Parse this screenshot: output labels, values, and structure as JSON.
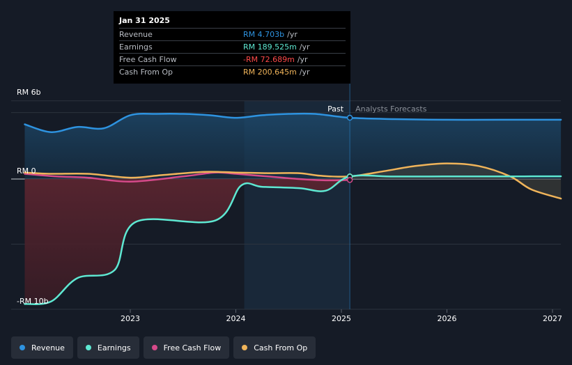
{
  "tooltip": {
    "date": "Jan 31 2025",
    "rows": [
      {
        "name": "Revenue",
        "value": "RM 4.703b",
        "unit": "/yr",
        "color": "#2e93e0"
      },
      {
        "name": "Earnings",
        "value": "RM 189.525m",
        "unit": "/yr",
        "color": "#5ee8d2"
      },
      {
        "name": "Free Cash Flow",
        "value": "-RM 72.689m",
        "unit": "/yr",
        "color": "#ff4a4a"
      },
      {
        "name": "Cash From Op",
        "value": "RM 200.645m",
        "unit": "/yr",
        "color": "#f0b45a"
      }
    ]
  },
  "legend": [
    {
      "label": "Revenue",
      "color": "#2e93e0"
    },
    {
      "label": "Earnings",
      "color": "#5ee8d2"
    },
    {
      "label": "Free Cash Flow",
      "color": "#d64a8a"
    },
    {
      "label": "Cash From Op",
      "color": "#f0b45a"
    }
  ],
  "chart_data": {
    "type": "line",
    "title": "",
    "xlabel": "",
    "ylabel": "",
    "y_axis_labels": [
      "RM 6b",
      "RM 0",
      "-RM 10b"
    ],
    "x_tick_labels": [
      {
        "label": "2023",
        "x": 2023.0
      },
      {
        "label": "2024",
        "x": 2024.0
      },
      {
        "label": "2025",
        "x": 2025.0
      },
      {
        "label": "2026",
        "x": 2026.0
      },
      {
        "label": "2027",
        "x": 2027.0
      }
    ],
    "xlim": [
      2021.8,
      2027.08
    ],
    "ylim": [
      -10.0,
      6.0
    ],
    "past_label": "Past",
    "forecast_label": "Analysts Forecasts",
    "divider_x": 2025.08,
    "highlight_start_x": 2024.08,
    "colors": {
      "revenue": "#2e93e0",
      "earnings": "#5ee8d2",
      "fcf": "#d64a8a",
      "cfo": "#f0b45a",
      "negative_fill": "#6e2a33"
    },
    "series": [
      {
        "name": "Revenue",
        "key": "revenue",
        "points": [
          [
            2022.0,
            4.2
          ],
          [
            2022.25,
            3.6
          ],
          [
            2022.5,
            4.0
          ],
          [
            2022.75,
            3.9
          ],
          [
            2023.0,
            4.9
          ],
          [
            2023.25,
            5.0
          ],
          [
            2023.5,
            5.0
          ],
          [
            2023.75,
            4.9
          ],
          [
            2024.0,
            4.7
          ],
          [
            2024.25,
            4.9
          ],
          [
            2024.5,
            5.0
          ],
          [
            2024.75,
            5.0
          ],
          [
            2025.08,
            4.703
          ],
          [
            2025.5,
            4.6
          ],
          [
            2026.0,
            4.55
          ],
          [
            2026.5,
            4.55
          ],
          [
            2027.08,
            4.55
          ]
        ]
      },
      {
        "name": "Earnings",
        "key": "earnings",
        "points": [
          [
            2022.0,
            -9.6
          ],
          [
            2022.25,
            -9.4
          ],
          [
            2022.5,
            -7.6
          ],
          [
            2022.85,
            -7.0
          ],
          [
            2023.05,
            -3.3
          ],
          [
            2023.8,
            -3.2
          ],
          [
            2024.05,
            -0.5
          ],
          [
            2024.25,
            -0.6
          ],
          [
            2024.6,
            -0.7
          ],
          [
            2024.85,
            -0.9
          ],
          [
            2025.08,
            0.19
          ],
          [
            2025.5,
            0.19
          ],
          [
            2026.0,
            0.2
          ],
          [
            2026.5,
            0.2
          ],
          [
            2027.08,
            0.21
          ]
        ]
      },
      {
        "name": "Free Cash Flow",
        "key": "fcf",
        "points": [
          [
            2022.0,
            0.4
          ],
          [
            2022.3,
            0.2
          ],
          [
            2022.6,
            0.1
          ],
          [
            2023.0,
            -0.2
          ],
          [
            2023.5,
            0.2
          ],
          [
            2023.8,
            0.5
          ],
          [
            2024.0,
            0.4
          ],
          [
            2024.3,
            0.2
          ],
          [
            2024.6,
            0.0
          ],
          [
            2024.85,
            -0.1
          ],
          [
            2025.08,
            -0.073
          ]
        ]
      },
      {
        "name": "Cash From Op",
        "key": "cfo",
        "points": [
          [
            2022.0,
            0.5
          ],
          [
            2022.25,
            0.4
          ],
          [
            2022.6,
            0.4
          ],
          [
            2023.0,
            0.1
          ],
          [
            2023.3,
            0.3
          ],
          [
            2023.7,
            0.55
          ],
          [
            2024.0,
            0.5
          ],
          [
            2024.3,
            0.45
          ],
          [
            2024.6,
            0.45
          ],
          [
            2024.8,
            0.25
          ],
          [
            2025.08,
            0.2
          ],
          [
            2025.4,
            0.6
          ],
          [
            2025.7,
            1.0
          ],
          [
            2026.0,
            1.2
          ],
          [
            2026.3,
            1.0
          ],
          [
            2026.6,
            0.2
          ],
          [
            2026.8,
            -0.8
          ],
          [
            2027.08,
            -1.5
          ]
        ]
      }
    ]
  }
}
